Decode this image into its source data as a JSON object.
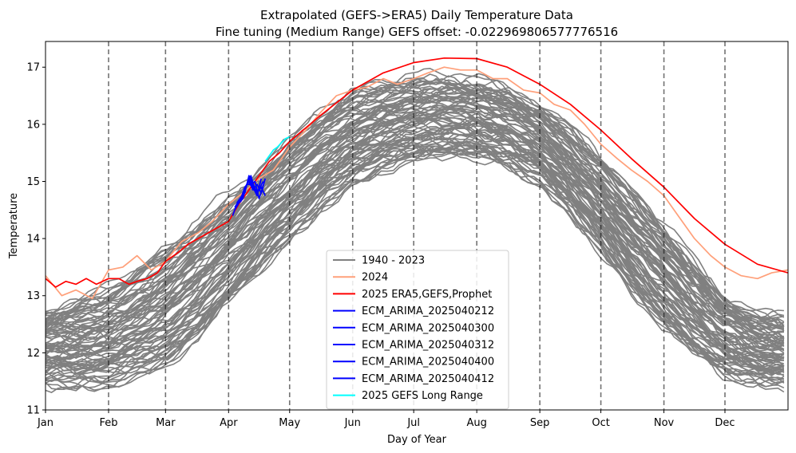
{
  "chart_data": {
    "type": "line",
    "title": "Extrapolated (GEFS->ERA5) Daily Temperature Data",
    "subtitle": "Fine tuning (Medium Range) GEFS offset: -0.022969806577776516",
    "xlabel": "Day of Year",
    "ylabel": "Temperature",
    "xlim": [
      0,
      365
    ],
    "ylim": [
      11,
      17.45
    ],
    "y_ticks": [
      11,
      12,
      13,
      14,
      15,
      16,
      17
    ],
    "x_ticks": [
      {
        "day": 0,
        "label": "Jan"
      },
      {
        "day": 31,
        "label": "Feb"
      },
      {
        "day": 59,
        "label": "Mar"
      },
      {
        "day": 90,
        "label": "Apr"
      },
      {
        "day": 120,
        "label": "May"
      },
      {
        "day": 151,
        "label": "Jun"
      },
      {
        "day": 181,
        "label": "Jul"
      },
      {
        "day": 212,
        "label": "Aug"
      },
      {
        "day": 243,
        "label": "Sep"
      },
      {
        "day": 273,
        "label": "Oct"
      },
      {
        "day": 304,
        "label": "Nov"
      },
      {
        "day": 334,
        "label": "Dec"
      }
    ],
    "month_lines": [
      31,
      59,
      90,
      120,
      151,
      181,
      212,
      243,
      273,
      304,
      334
    ],
    "grid": false,
    "legend_placement": "lower-center",
    "historical_envelope": {
      "name": "1940 - 2023",
      "color": "#808080",
      "count": 84,
      "x": [
        0,
        15,
        31,
        45,
        59,
        75,
        90,
        105,
        120,
        135,
        151,
        166,
        181,
        196,
        212,
        227,
        243,
        258,
        273,
        288,
        304,
        319,
        334,
        350,
        365
      ],
      "lower": [
        11.45,
        11.4,
        11.45,
        11.6,
        11.8,
        12.25,
        12.85,
        13.4,
        13.95,
        14.5,
        14.95,
        15.25,
        15.4,
        15.45,
        15.4,
        15.25,
        14.95,
        14.45,
        13.8,
        13.1,
        12.45,
        11.95,
        11.6,
        11.45,
        11.45
      ],
      "upper": [
        12.75,
        12.9,
        13.1,
        13.45,
        13.8,
        14.3,
        14.75,
        15.25,
        15.75,
        16.2,
        16.55,
        16.7,
        16.8,
        16.85,
        16.8,
        16.65,
        16.35,
        15.9,
        15.4,
        14.85,
        14.25,
        13.6,
        13.0,
        12.7,
        12.6
      ]
    },
    "series": [
      {
        "name": "2024",
        "color": "#ffa07a",
        "x": [
          0,
          8,
          15,
          23,
          31,
          38,
          45,
          52,
          59,
          67,
          75,
          82,
          90,
          97,
          105,
          112,
          120,
          128,
          135,
          143,
          151,
          158,
          166,
          173,
          181,
          188,
          196,
          204,
          212,
          220,
          227,
          235,
          243,
          250,
          258,
          265,
          273,
          281,
          288,
          296,
          304,
          311,
          319,
          327,
          334,
          342,
          350,
          357,
          365
        ],
        "y": [
          13.35,
          13.0,
          13.1,
          12.95,
          13.45,
          13.5,
          13.7,
          13.45,
          13.6,
          13.95,
          14.1,
          14.3,
          14.6,
          14.8,
          15.05,
          15.2,
          15.6,
          15.9,
          16.2,
          16.5,
          16.6,
          16.65,
          16.8,
          16.7,
          16.8,
          16.9,
          17.0,
          16.95,
          16.95,
          16.8,
          16.8,
          16.6,
          16.55,
          16.35,
          16.25,
          16.0,
          15.65,
          15.4,
          15.2,
          15.0,
          14.75,
          14.4,
          14.0,
          13.7,
          13.5,
          13.35,
          13.3,
          13.4,
          13.45
        ]
      },
      {
        "name": "2025 ERA5,GEFS,Prophet",
        "color": "#ff0000",
        "x": [
          0,
          5,
          10,
          15,
          20,
          25,
          31,
          36,
          41,
          45,
          50,
          55,
          59,
          65,
          70,
          75,
          80,
          85,
          90,
          95,
          100,
          105,
          110,
          115,
          120,
          135,
          151,
          166,
          181,
          196,
          212,
          227,
          243,
          258,
          273,
          288,
          304,
          319,
          334,
          350,
          365
        ],
        "y": [
          13.3,
          13.15,
          13.25,
          13.2,
          13.3,
          13.2,
          13.3,
          13.3,
          13.2,
          13.25,
          13.3,
          13.4,
          13.6,
          13.75,
          13.9,
          14.0,
          14.1,
          14.2,
          14.3,
          14.6,
          14.85,
          15.1,
          15.35,
          15.5,
          15.7,
          16.15,
          16.6,
          16.9,
          17.08,
          17.16,
          17.15,
          17.0,
          16.7,
          16.35,
          15.9,
          15.4,
          14.9,
          14.35,
          13.9,
          13.55,
          13.4
        ]
      },
      {
        "name": "ECM_ARIMA_2025040212",
        "color": "#0000ff",
        "x": [
          92,
          94,
          96,
          98,
          100,
          102,
          104,
          106
        ],
        "y": [
          14.4,
          14.6,
          14.65,
          14.85,
          15.05,
          14.9,
          14.75,
          15.05
        ]
      },
      {
        "name": "ECM_ARIMA_2025040300",
        "color": "#0000ff",
        "x": [
          93,
          95,
          97,
          99,
          101,
          103,
          105,
          107
        ],
        "y": [
          14.5,
          14.62,
          14.7,
          14.95,
          15.1,
          14.85,
          14.85,
          15.0
        ]
      },
      {
        "name": "ECM_ARIMA_2025040312",
        "color": "#0000ff",
        "x": [
          93,
          95,
          97,
          99,
          101,
          103,
          105,
          107
        ],
        "y": [
          14.55,
          14.65,
          14.75,
          14.95,
          14.95,
          15.0,
          14.7,
          14.9
        ]
      },
      {
        "name": "ECM_ARIMA_2025040400",
        "color": "#0000ff",
        "x": [
          94,
          96,
          98,
          100,
          102,
          104,
          106,
          108
        ],
        "y": [
          14.6,
          14.7,
          14.9,
          15.0,
          14.85,
          14.95,
          14.8,
          15.05
        ]
      },
      {
        "name": "ECM_ARIMA_2025040412",
        "color": "#0000ff",
        "x": [
          94,
          96,
          98,
          100,
          102,
          104,
          106,
          108
        ],
        "y": [
          14.62,
          14.72,
          14.8,
          15.1,
          14.95,
          14.8,
          14.9,
          14.75
        ]
      },
      {
        "name": "2025 GEFS Long Range",
        "color": "#00ffff",
        "x": [
          108,
          110,
          112,
          114,
          116,
          118,
          120
        ],
        "y": [
          15.35,
          15.45,
          15.55,
          15.6,
          15.68,
          15.75,
          15.78
        ]
      }
    ],
    "legend": [
      {
        "label": "1940 - 2023",
        "color": "#808080"
      },
      {
        "label": "2024",
        "color": "#ffa07a"
      },
      {
        "label": "2025 ERA5,GEFS,Prophet",
        "color": "#ff0000"
      },
      {
        "label": "ECM_ARIMA_2025040212",
        "color": "#0000ff"
      },
      {
        "label": "ECM_ARIMA_2025040300",
        "color": "#0000ff"
      },
      {
        "label": "ECM_ARIMA_2025040312",
        "color": "#0000ff"
      },
      {
        "label": "ECM_ARIMA_2025040400",
        "color": "#0000ff"
      },
      {
        "label": "ECM_ARIMA_2025040412",
        "color": "#0000ff"
      },
      {
        "label": "2025 GEFS Long Range",
        "color": "#00ffff"
      }
    ]
  }
}
